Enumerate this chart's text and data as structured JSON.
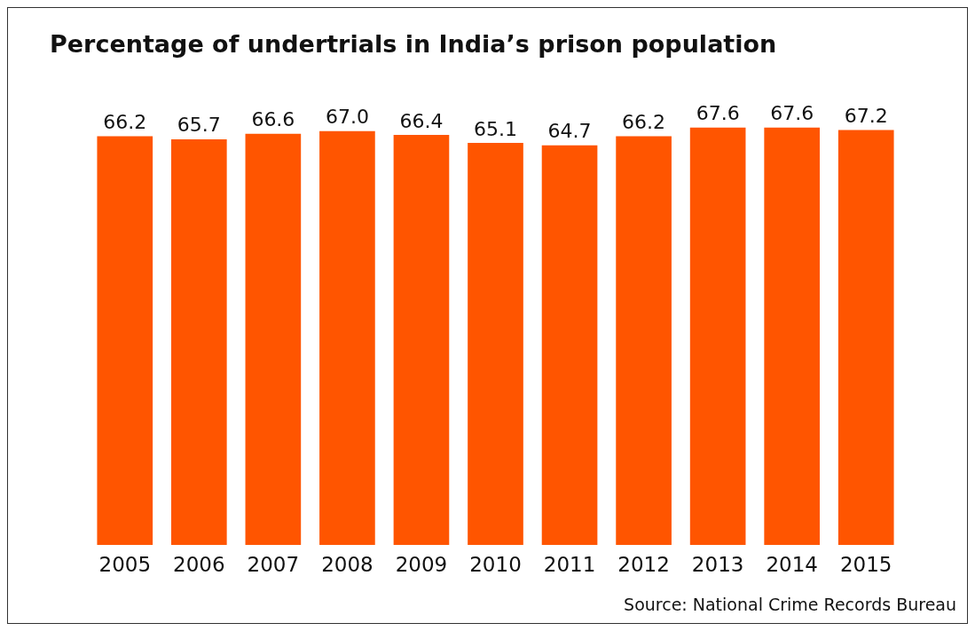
{
  "chart_data": {
    "type": "bar",
    "title": "Percentage of undertrials in India’s prison population",
    "categories": [
      "2005",
      "2006",
      "2007",
      "2008",
      "2009",
      "2010",
      "2011",
      "2012",
      "2013",
      "2014",
      "2015"
    ],
    "values": [
      66.2,
      65.7,
      66.6,
      67.0,
      66.4,
      65.1,
      64.7,
      66.2,
      67.6,
      67.6,
      67.2
    ],
    "value_labels": [
      "66.2",
      "65.7",
      "66.6",
      "67.0",
      "66.4",
      "65.1",
      "64.7",
      "66.2",
      "67.6",
      "67.6",
      "67.2"
    ],
    "color": "#ff5500",
    "annotations": [
      "Source: National Crime Records Bureau"
    ]
  }
}
